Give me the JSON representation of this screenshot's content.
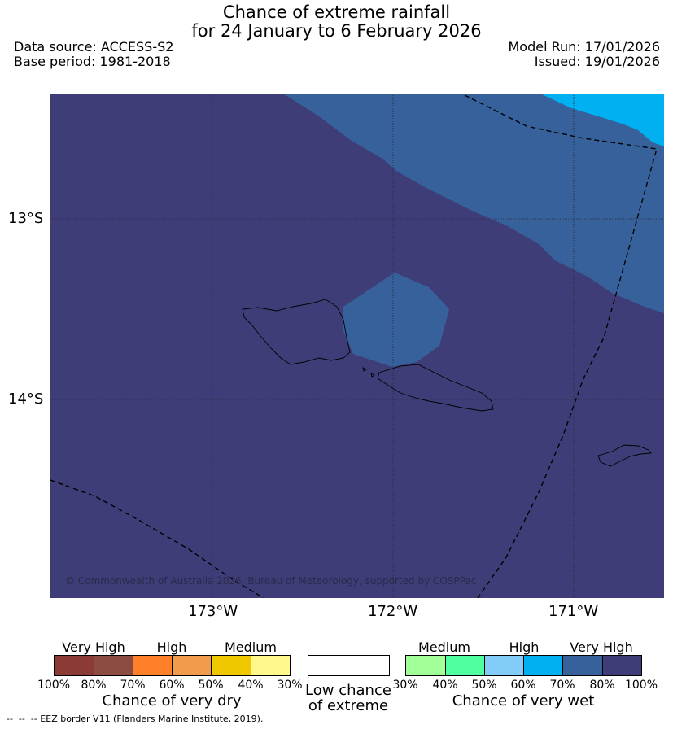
{
  "title": {
    "line1": "Chance of extreme rainfall",
    "line2": "for 24 January to 6 February 2026"
  },
  "meta": {
    "data_source": "Data source: ACCESS-S2",
    "base_period": "Base period: 1981-2018",
    "model_run": "Model Run: 17/01/2026",
    "issued": "Issued: 19/01/2026"
  },
  "map": {
    "lat_labels": [
      "13°S",
      "14°S"
    ],
    "lon_labels": [
      "173°W",
      "172°W",
      "171°W"
    ],
    "copyright": "© Commonwealth of Australia 2026, Bureau of Meteorology, supported by COSPPac",
    "colors": {
      "very_high_wet": "#3f3d78",
      "high_wet": "#37619b",
      "medium_high_wet": "#00b0f0",
      "grid": "#2c2c44"
    }
  },
  "legend_dry": {
    "headings": [
      "Very High",
      "High",
      "Medium"
    ],
    "ticks": [
      "100%",
      "80%",
      "70%",
      "60%",
      "50%",
      "40%",
      "30%"
    ],
    "colors": [
      "#8b3a35",
      "#8c4d40",
      "#ff8028",
      "#f09c4c",
      "#f0c800",
      "#fff88c"
    ],
    "caption": "Chance of very dry"
  },
  "legend_low": {
    "caption_line1": "Low chance",
    "caption_line2": "of extreme",
    "color": "#ffffff"
  },
  "legend_wet": {
    "headings": [
      "Medium",
      "High",
      "Very High"
    ],
    "ticks": [
      "30%",
      "40%",
      "50%",
      "60%",
      "70%",
      "80%",
      "100%"
    ],
    "colors": [
      "#a0ff96",
      "#50ffa0",
      "#82ccfa",
      "#00b0f0",
      "#37619b",
      "#3f3d78"
    ],
    "caption": "Chance of very wet"
  },
  "footnote": "--  --  -- EEZ border V11 (Flanders Marine Institute, 2019)."
}
